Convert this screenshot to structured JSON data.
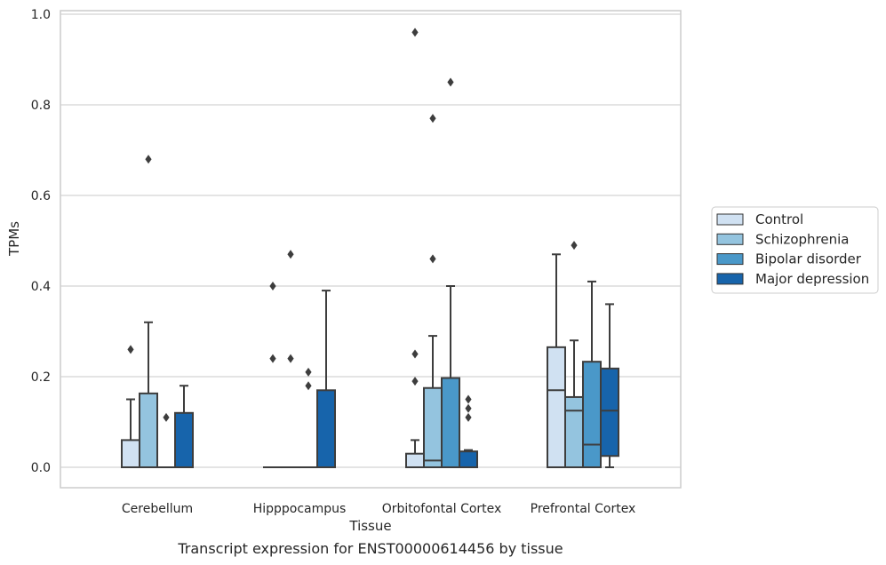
{
  "chart_data": {
    "type": "box",
    "title": "",
    "caption": "Transcript expression for ENST00000614456 by tissue",
    "xlabel": "Tissue",
    "ylabel": "TPMs",
    "ylim": [
      -0.045,
      1.01
    ],
    "yticks": [
      "0.0",
      "0.2",
      "0.4",
      "0.6",
      "0.8",
      "1.0"
    ],
    "grid": "horizontal",
    "legend_position": "right",
    "categories": [
      "Cerebellum",
      "Hipppocampus",
      "Orbitofontal Cortex",
      "Prefrontal Cortex"
    ],
    "series": [
      {
        "name": "Control",
        "color": "#d0e1f2",
        "boxes": [
          {
            "whisker_low": 0.0,
            "q1": 0.0,
            "median": 0.0,
            "q3": 0.06,
            "whisker_high": 0.15,
            "outliers": [
              0.26
            ]
          },
          {
            "whisker_low": 0.0,
            "q1": 0.0,
            "median": 0.0,
            "q3": 0.0,
            "whisker_high": 0.0,
            "outliers": [
              0.4,
              0.24
            ]
          },
          {
            "whisker_low": 0.0,
            "q1": 0.0,
            "median": 0.0,
            "q3": 0.03,
            "whisker_high": 0.06,
            "outliers": [
              0.96,
              0.25,
              0.19
            ]
          },
          {
            "whisker_low": 0.0,
            "q1": 0.0,
            "median": 0.17,
            "q3": 0.265,
            "whisker_high": 0.47,
            "outliers": []
          }
        ]
      },
      {
        "name": "Schizophrenia",
        "color": "#94c4df",
        "boxes": [
          {
            "whisker_low": 0.0,
            "q1": 0.0,
            "median": 0.0,
            "q3": 0.163,
            "whisker_high": 0.32,
            "outliers": [
              0.68
            ]
          },
          {
            "whisker_low": 0.0,
            "q1": 0.0,
            "median": 0.0,
            "q3": 0.0,
            "whisker_high": 0.0,
            "outliers": [
              0.47,
              0.24
            ]
          },
          {
            "whisker_low": 0.0,
            "q1": 0.0,
            "median": 0.015,
            "q3": 0.175,
            "whisker_high": 0.29,
            "outliers": [
              0.77,
              0.46
            ]
          },
          {
            "whisker_low": 0.0,
            "q1": 0.0,
            "median": 0.125,
            "q3": 0.155,
            "whisker_high": 0.28,
            "outliers": [
              0.49
            ]
          }
        ]
      },
      {
        "name": "Bipolar disorder",
        "color": "#4a98c9",
        "boxes": [
          {
            "whisker_low": 0.0,
            "q1": 0.0,
            "median": 0.0,
            "q3": 0.0,
            "whisker_high": 0.0,
            "outliers": [
              0.11
            ]
          },
          {
            "whisker_low": 0.0,
            "q1": 0.0,
            "median": 0.0,
            "q3": 0.0,
            "whisker_high": 0.0,
            "outliers": [
              0.21,
              0.18
            ]
          },
          {
            "whisker_low": 0.0,
            "q1": 0.0,
            "median": 0.0,
            "q3": 0.197,
            "whisker_high": 0.4,
            "outliers": [
              0.85
            ]
          },
          {
            "whisker_low": 0.0,
            "q1": 0.0,
            "median": 0.05,
            "q3": 0.233,
            "whisker_high": 0.41,
            "outliers": []
          }
        ]
      },
      {
        "name": "Major depression",
        "color": "#1764ab",
        "boxes": [
          {
            "whisker_low": 0.0,
            "q1": 0.0,
            "median": 0.0,
            "q3": 0.12,
            "whisker_high": 0.18,
            "outliers": []
          },
          {
            "whisker_low": 0.0,
            "q1": 0.0,
            "median": 0.0,
            "q3": 0.17,
            "whisker_high": 0.39,
            "outliers": []
          },
          {
            "whisker_low": 0.0,
            "q1": 0.0,
            "median": 0.0,
            "q3": 0.035,
            "whisker_high": 0.038,
            "outliers": [
              0.15,
              0.13,
              0.11
            ]
          },
          {
            "whisker_low": 0.0,
            "q1": 0.025,
            "median": 0.125,
            "q3": 0.218,
            "whisker_high": 0.36,
            "outliers": []
          }
        ]
      }
    ]
  }
}
